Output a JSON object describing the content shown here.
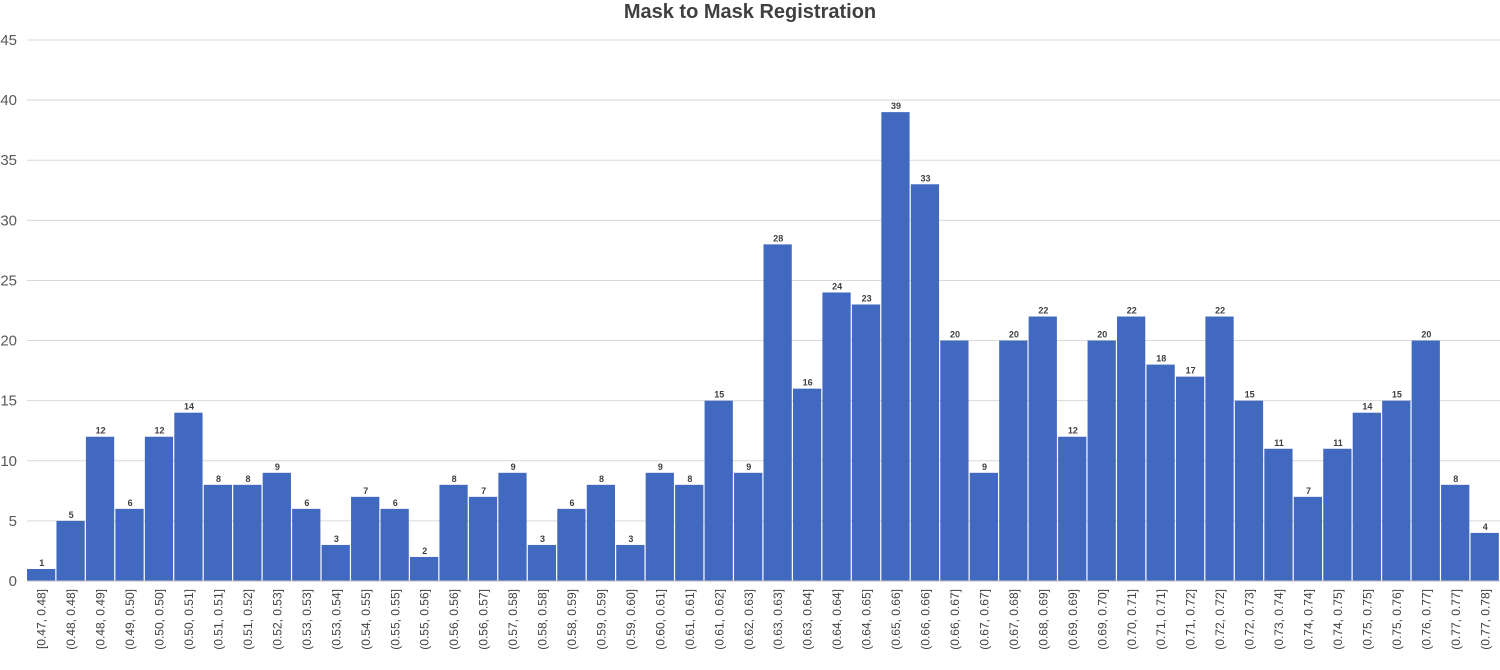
{
  "chart_data": {
    "type": "bar",
    "title": "Mask to Mask Registration",
    "xlabel": "",
    "ylabel": "",
    "ylim": [
      0,
      45
    ],
    "yticks": [
      0,
      5,
      10,
      15,
      20,
      25,
      30,
      35,
      40,
      45
    ],
    "grid": true,
    "bar_color": "#4169c0",
    "categories": [
      "[0.47, 0.48]",
      "(0.48, 0.48]",
      "(0.48, 0.49]",
      "(0.49, 0.50]",
      "(0.50, 0.50]",
      "(0.50, 0.51]",
      "(0.51, 0.51]",
      "(0.51, 0.52]",
      "(0.52, 0.53]",
      "(0.53, 0.53]",
      "(0.53, 0.54]",
      "(0.54, 0.55]",
      "(0.55, 0.55]",
      "(0.55, 0.56]",
      "(0.56, 0.56]",
      "(0.56, 0.57]",
      "(0.57, 0.58]",
      "(0.58, 0.58]",
      "(0.58, 0.59]",
      "(0.59, 0.59]",
      "(0.59, 0.60]",
      "(0.60, 0.61]",
      "(0.61, 0.61]",
      "(0.61, 0.62]",
      "(0.62, 0.63]",
      "(0.63, 0.63]",
      "(0.63, 0.64]",
      "(0.64, 0.64]",
      "(0.64, 0.65]",
      "(0.65, 0.66]",
      "(0.66, 0.66]",
      "(0.66, 0.67]",
      "(0.67, 0.67]",
      "(0.67, 0.68]",
      "(0.68, 0.69]",
      "(0.69, 0.69]",
      "(0.69, 0.70]",
      "(0.70, 0.71]",
      "(0.71, 0.71]",
      "(0.71, 0.72]",
      "(0.72, 0.72]",
      "(0.72, 0.73]",
      "(0.73, 0.74]",
      "(0.74, 0.74]",
      "(0.74, 0.75]",
      "(0.75, 0.75]",
      "(0.75, 0.76]",
      "(0.76, 0.77]",
      "(0.77, 0.77]",
      "(0.77, 0.78]"
    ],
    "values": [
      1,
      5,
      12,
      6,
      12,
      14,
      8,
      8,
      9,
      6,
      3,
      7,
      6,
      2,
      8,
      7,
      9,
      3,
      6,
      8,
      3,
      9,
      8,
      15,
      9,
      28,
      16,
      24,
      23,
      39,
      33,
      20,
      9,
      20,
      22,
      12,
      20,
      22,
      18,
      17,
      22,
      15,
      11,
      7,
      11,
      14,
      15,
      20,
      8,
      4
    ]
  }
}
